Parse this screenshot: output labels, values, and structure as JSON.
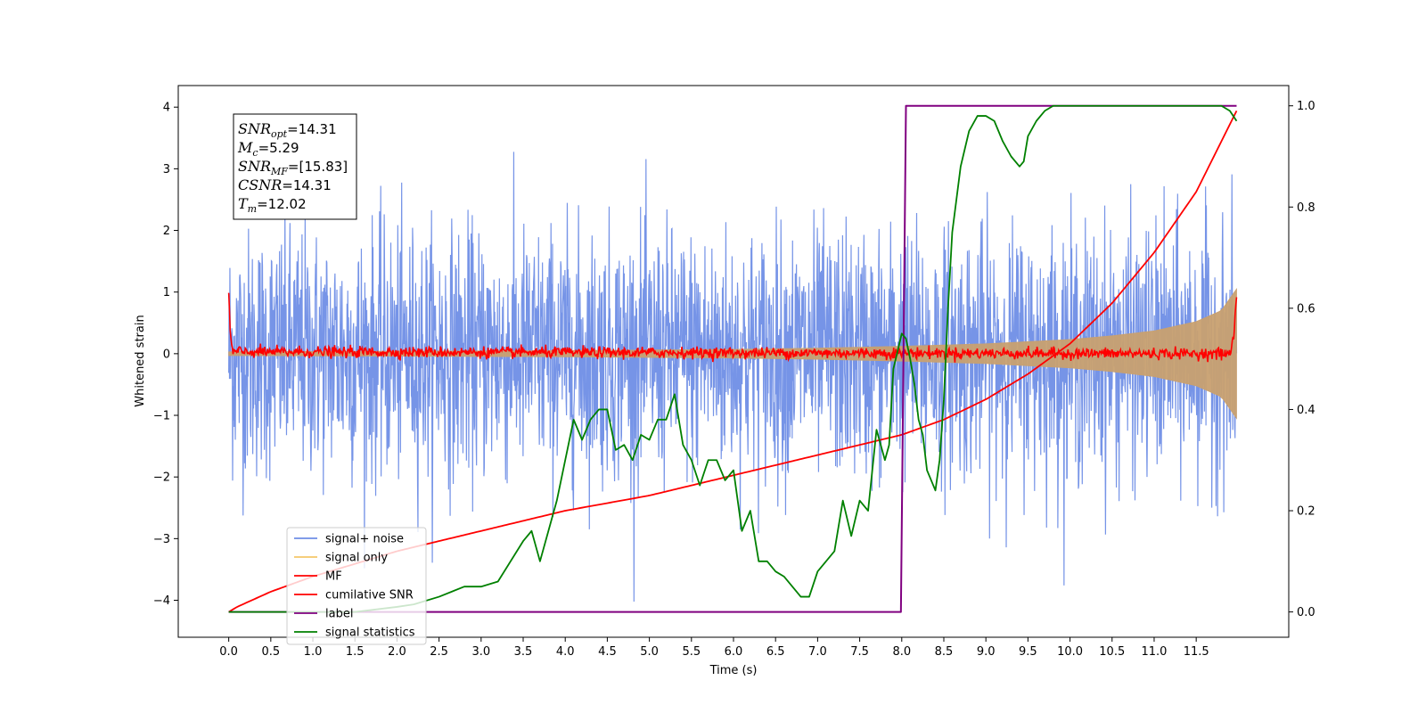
{
  "chart_data": {
    "type": "line",
    "xlabel": "Time (s)",
    "ylabel": "Whitened strain",
    "xlim": [
      -0.6,
      12.6
    ],
    "ylim": [
      -4.6,
      4.35
    ],
    "y2lim": [
      -0.05,
      1.04
    ],
    "xticks": [
      "0.0",
      "0.5",
      "1.0",
      "1.5",
      "2.0",
      "2.5",
      "3.0",
      "3.5",
      "4.0",
      "4.5",
      "5.0",
      "5.5",
      "6.0",
      "6.5",
      "7.0",
      "7.5",
      "8.0",
      "8.5",
      "9.0",
      "9.5",
      "10.0",
      "10.5",
      "11.0",
      "11.5"
    ],
    "yticks": [
      "4",
      "3",
      "2",
      "1",
      "0",
      "−1",
      "−2",
      "−3",
      "−4"
    ],
    "y2ticks": [
      "1.0",
      "0.8",
      "0.6",
      "0.4",
      "0.2",
      "0.0"
    ],
    "annotation": {
      "lines": [
        {
          "main": "SNR",
          "sub": "opt",
          "value": "=14.31"
        },
        {
          "main": "M",
          "sub": "c",
          "value": "=5.29"
        },
        {
          "main": "SNR",
          "sub": "MF",
          "value": "=[15.83]"
        },
        {
          "main": "CSNR",
          "sub": "",
          "value": "=14.31"
        },
        {
          "main": "T",
          "sub": "m",
          "value": "=12.02"
        }
      ]
    },
    "legend": {
      "placement": "lower-left",
      "entries": [
        {
          "label": "signal+ noise",
          "color": "#6f8ee6"
        },
        {
          "label": "signal only",
          "color": "#f5c76a"
        },
        {
          "label": "MF",
          "color": "#ff0000"
        },
        {
          "label": "cumilative SNR",
          "color": "#ff0000"
        },
        {
          "label": "label",
          "color": "#800080"
        },
        {
          "label": "signal statistics",
          "color": "#008000"
        }
      ]
    },
    "series": [
      {
        "name": "signal+ noise",
        "axis": "left",
        "color": "#6f8ee6",
        "x_range": [
          0.0,
          11.98
        ],
        "noise_sigma": 1.0
      },
      {
        "name": "signal only",
        "axis": "left",
        "color": "#c8a070",
        "x": [
          0,
          2,
          4,
          6,
          7,
          8,
          9,
          10,
          10.5,
          11,
          11.5,
          11.8,
          11.98
        ],
        "envelope": [
          0.03,
          0.04,
          0.05,
          0.07,
          0.09,
          0.12,
          0.16,
          0.23,
          0.29,
          0.37,
          0.52,
          0.7,
          1.05
        ]
      },
      {
        "name": "MF",
        "axis": "left",
        "color": "#ff0000",
        "x": [
          0.0,
          0.02,
          0.05,
          11.9,
          11.95,
          11.98
        ],
        "values": [
          1.0,
          0.25,
          0.03,
          0.0,
          0.3,
          0.95
        ]
      },
      {
        "name": "cumilative SNR",
        "axis": "right",
        "color": "#ff0000",
        "x": [
          0,
          0.1,
          0.5,
          1,
          2,
          3,
          4,
          5,
          6,
          7,
          8,
          8.5,
          9,
          9.5,
          10,
          10.5,
          11,
          11.5,
          11.98
        ],
        "values": [
          0.0,
          0.01,
          0.04,
          0.07,
          0.12,
          0.16,
          0.2,
          0.23,
          0.27,
          0.31,
          0.35,
          0.38,
          0.42,
          0.47,
          0.53,
          0.61,
          0.71,
          0.83,
          0.99
        ]
      },
      {
        "name": "label",
        "axis": "right",
        "color": "#800080",
        "x": [
          0,
          7.99,
          8.05,
          11.98
        ],
        "values": [
          0,
          0,
          1,
          1
        ]
      },
      {
        "name": "signal statistics",
        "axis": "right",
        "color": "#008000",
        "x": [
          0,
          0.5,
          1,
          1.5,
          2,
          2.2,
          2.5,
          2.8,
          3,
          3.2,
          3.5,
          3.6,
          3.7,
          3.8,
          3.9,
          4.0,
          4.1,
          4.2,
          4.3,
          4.4,
          4.5,
          4.6,
          4.7,
          4.8,
          4.9,
          5.0,
          5.1,
          5.2,
          5.3,
          5.4,
          5.5,
          5.6,
          5.7,
          5.8,
          5.9,
          6.0,
          6.1,
          6.2,
          6.3,
          6.4,
          6.5,
          6.6,
          6.7,
          6.8,
          6.9,
          7.0,
          7.1,
          7.2,
          7.3,
          7.4,
          7.5,
          7.6,
          7.7,
          7.8,
          7.85,
          7.9,
          8.0,
          8.05,
          8.1,
          8.15,
          8.2,
          8.25,
          8.3,
          8.35,
          8.4,
          8.45,
          8.5,
          8.55,
          8.6,
          8.7,
          8.8,
          8.9,
          9.0,
          9.1,
          9.2,
          9.3,
          9.4,
          9.45,
          9.5,
          9.6,
          9.7,
          9.8,
          9.9,
          10.0,
          10.2,
          10.5,
          11.0,
          11.5,
          11.8,
          11.9,
          11.98
        ],
        "values": [
          0.0,
          0.0,
          0.0,
          0.0,
          0.01,
          0.015,
          0.03,
          0.05,
          0.05,
          0.06,
          0.14,
          0.16,
          0.1,
          0.16,
          0.22,
          0.3,
          0.38,
          0.34,
          0.38,
          0.4,
          0.4,
          0.32,
          0.33,
          0.3,
          0.35,
          0.34,
          0.38,
          0.38,
          0.43,
          0.33,
          0.3,
          0.25,
          0.3,
          0.3,
          0.26,
          0.28,
          0.16,
          0.2,
          0.1,
          0.1,
          0.08,
          0.07,
          0.05,
          0.03,
          0.03,
          0.08,
          0.1,
          0.12,
          0.22,
          0.15,
          0.22,
          0.2,
          0.36,
          0.3,
          0.33,
          0.48,
          0.55,
          0.54,
          0.5,
          0.45,
          0.38,
          0.35,
          0.28,
          0.26,
          0.24,
          0.3,
          0.42,
          0.6,
          0.75,
          0.88,
          0.95,
          0.98,
          0.98,
          0.97,
          0.93,
          0.9,
          0.88,
          0.89,
          0.94,
          0.97,
          0.99,
          1.0,
          1.0,
          1.0,
          1.0,
          1.0,
          1.0,
          1.0,
          1.0,
          0.99,
          0.97
        ]
      }
    ]
  }
}
